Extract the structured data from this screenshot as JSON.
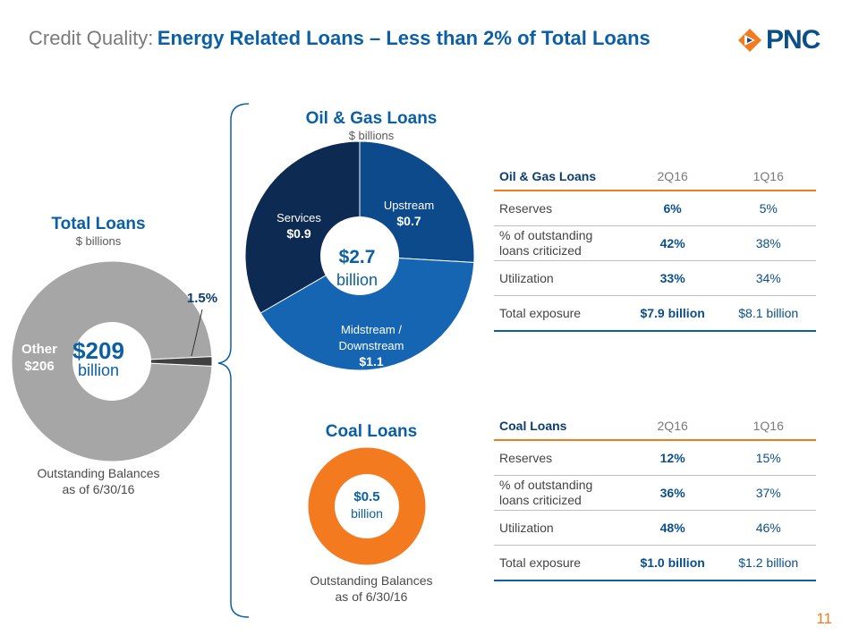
{
  "header": {
    "title_prefix": "Credit Quality:",
    "title_main": "Energy Related Loans – Less than 2% of Total Loans",
    "logo_text": "PNC"
  },
  "colors": {
    "brand_blue": "#0b5fa5",
    "orange": "#f47a20",
    "gray": "#a6a6a6",
    "dark_navy": "#0d2a52",
    "mid_blue": "#0d4a8c",
    "light_blue": "#1565b3"
  },
  "total_loans": {
    "title": "Total Loans",
    "subtitle": "$ billions",
    "center_value": "$209",
    "center_unit": "billion",
    "other_label": "Other",
    "other_value": "$206",
    "callout": "1.5%",
    "note_line1": "Outstanding Balances",
    "note_line2": "as of 6/30/16"
  },
  "oil_gas": {
    "title": "Oil & Gas Loans",
    "subtitle": "$ billions",
    "center_value": "$2.7",
    "center_unit": "billion",
    "segments": [
      {
        "label_line1": "Upstream",
        "label_line2": "",
        "value_label": "$0.7"
      },
      {
        "label_line1": "Midstream /",
        "label_line2": "Downstream",
        "value_label": "$1.1"
      },
      {
        "label_line1": "Services",
        "label_line2": "",
        "value_label": "$0.9"
      }
    ]
  },
  "coal": {
    "title": "Coal Loans",
    "center_value": "$0.5",
    "center_unit": "billion",
    "note_line1": "Outstanding Balances",
    "note_line2": "as of 6/30/16"
  },
  "oil_gas_table": {
    "header": [
      "Oil & Gas Loans",
      "2Q16",
      "1Q16"
    ],
    "rows": [
      {
        "label_line1": "Reserves",
        "label_line2": "",
        "q2": "6%",
        "q1": "5%"
      },
      {
        "label_line1": "% of outstanding",
        "label_line2": "loans criticized",
        "q2": "42%",
        "q1": "38%"
      },
      {
        "label_line1": "Utilization",
        "label_line2": "",
        "q2": "33%",
        "q1": "34%"
      },
      {
        "label_line1": "Total exposure",
        "label_line2": "",
        "q2": "$7.9 billion",
        "q1": "$8.1 billion"
      }
    ]
  },
  "coal_table": {
    "header": [
      "Coal Loans",
      "2Q16",
      "1Q16"
    ],
    "rows": [
      {
        "label_line1": "Reserves",
        "label_line2": "",
        "q2": "12%",
        "q1": "15%"
      },
      {
        "label_line1": "% of outstanding",
        "label_line2": "loans criticized",
        "q2": "36%",
        "q1": "37%"
      },
      {
        "label_line1": "Utilization",
        "label_line2": "",
        "q2": "48%",
        "q1": "46%"
      },
      {
        "label_line1": "Total exposure",
        "label_line2": "",
        "q2": "$1.0 billion",
        "q1": "$1.2 billion"
      }
    ]
  },
  "page_number": "11",
  "chart_data": [
    {
      "type": "pie",
      "title": "Total Loans",
      "subtitle": "$ billions",
      "total": 209,
      "slices": [
        {
          "name": "Other",
          "value": 206,
          "color": "#a6a6a6"
        },
        {
          "name": "Energy related",
          "value": 3.2,
          "color": "#404040",
          "share_label": "1.5%"
        }
      ]
    },
    {
      "type": "pie",
      "title": "Oil & Gas Loans",
      "subtitle": "$ billions",
      "total": 2.7,
      "slices": [
        {
          "name": "Upstream",
          "value": 0.7,
          "color": "#0d4a8c"
        },
        {
          "name": "Midstream / Downstream",
          "value": 1.1,
          "color": "#1565b3"
        },
        {
          "name": "Services",
          "value": 0.9,
          "color": "#0d2a52"
        }
      ]
    },
    {
      "type": "pie",
      "title": "Coal Loans",
      "total": 0.5,
      "slices": [
        {
          "name": "Coal",
          "value": 0.5,
          "color": "#f47a20"
        }
      ]
    },
    {
      "type": "table",
      "title": "Oil & Gas Loans",
      "columns": [
        "2Q16",
        "1Q16"
      ],
      "rows": [
        {
          "name": "Reserves",
          "values": [
            "6%",
            "5%"
          ]
        },
        {
          "name": "% of outstanding loans criticized",
          "values": [
            "42%",
            "38%"
          ]
        },
        {
          "name": "Utilization",
          "values": [
            "33%",
            "34%"
          ]
        },
        {
          "name": "Total exposure",
          "values": [
            "$7.9 billion",
            "$8.1 billion"
          ]
        }
      ]
    },
    {
      "type": "table",
      "title": "Coal Loans",
      "columns": [
        "2Q16",
        "1Q16"
      ],
      "rows": [
        {
          "name": "Reserves",
          "values": [
            "12%",
            "15%"
          ]
        },
        {
          "name": "% of outstanding loans criticized",
          "values": [
            "36%",
            "37%"
          ]
        },
        {
          "name": "Utilization",
          "values": [
            "48%",
            "46%"
          ]
        },
        {
          "name": "Total exposure",
          "values": [
            "$1.0 billion",
            "$1.2 billion"
          ]
        }
      ]
    }
  ]
}
